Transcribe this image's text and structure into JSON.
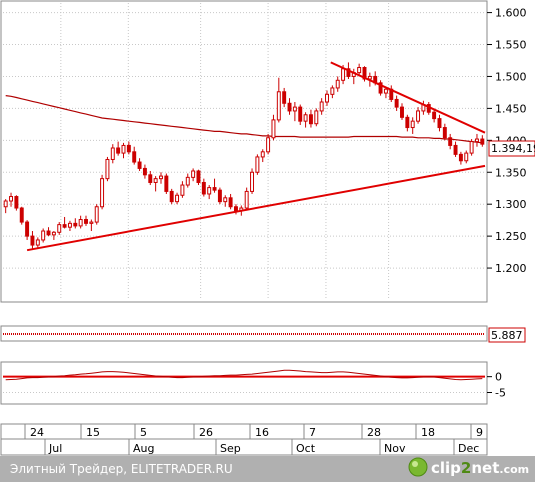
{
  "chart_data": {
    "type": "candlestick",
    "main_panel": {
      "y_ticks": [
        "1.600",
        "1.550",
        "1.500",
        "1.450",
        "1.400",
        "1.350",
        "1.300",
        "1.250",
        "1.200"
      ],
      "y_tick_values": [
        1600,
        1550,
        1500,
        1450,
        1400,
        1350,
        1300,
        1250,
        1200
      ],
      "ylim": [
        1150,
        1615
      ],
      "last_price_label": "1.394,19",
      "last_price": 1394.19,
      "candles": [
        [
          1296,
          1308,
          1286,
          1305
        ],
        [
          1305,
          1318,
          1296,
          1312
        ],
        [
          1312,
          1314,
          1290,
          1294
        ],
        [
          1294,
          1296,
          1268,
          1272
        ],
        [
          1272,
          1275,
          1244,
          1250
        ],
        [
          1250,
          1258,
          1230,
          1236
        ],
        [
          1236,
          1248,
          1230,
          1244
        ],
        [
          1244,
          1262,
          1240,
          1258
        ],
        [
          1258,
          1264,
          1250,
          1252
        ],
        [
          1252,
          1258,
          1244,
          1256
        ],
        [
          1256,
          1272,
          1252,
          1268
        ],
        [
          1268,
          1280,
          1262,
          1264
        ],
        [
          1264,
          1274,
          1258,
          1270
        ],
        [
          1270,
          1278,
          1262,
          1266
        ],
        [
          1266,
          1282,
          1262,
          1276
        ],
        [
          1276,
          1282,
          1266,
          1270
        ],
        [
          1270,
          1276,
          1258,
          1272
        ],
        [
          1272,
          1300,
          1268,
          1296
        ],
        [
          1296,
          1346,
          1292,
          1340
        ],
        [
          1340,
          1374,
          1336,
          1370
        ],
        [
          1370,
          1394,
          1364,
          1388
        ],
        [
          1388,
          1398,
          1376,
          1380
        ],
        [
          1380,
          1396,
          1372,
          1392
        ],
        [
          1392,
          1398,
          1378,
          1382
        ],
        [
          1382,
          1390,
          1362,
          1366
        ],
        [
          1366,
          1372,
          1352,
          1356
        ],
        [
          1356,
          1362,
          1340,
          1346
        ],
        [
          1346,
          1352,
          1330,
          1334
        ],
        [
          1334,
          1344,
          1320,
          1340
        ],
        [
          1340,
          1350,
          1332,
          1344
        ],
        [
          1344,
          1348,
          1316,
          1320
        ],
        [
          1320,
          1324,
          1300,
          1304
        ],
        [
          1304,
          1318,
          1300,
          1314
        ],
        [
          1314,
          1336,
          1310,
          1330
        ],
        [
          1330,
          1348,
          1326,
          1342
        ],
        [
          1342,
          1356,
          1336,
          1352
        ],
        [
          1352,
          1354,
          1330,
          1334
        ],
        [
          1334,
          1340,
          1312,
          1316
        ],
        [
          1316,
          1330,
          1308,
          1326
        ],
        [
          1326,
          1340,
          1318,
          1322
        ],
        [
          1322,
          1326,
          1300,
          1304
        ],
        [
          1304,
          1314,
          1296,
          1310
        ],
        [
          1310,
          1316,
          1292,
          1296
        ],
        [
          1296,
          1300,
          1284,
          1290
        ],
        [
          1290,
          1298,
          1282,
          1294
        ],
        [
          1294,
          1326,
          1290,
          1320
        ],
        [
          1320,
          1356,
          1316,
          1350
        ],
        [
          1350,
          1378,
          1346,
          1374
        ],
        [
          1374,
          1386,
          1366,
          1382
        ],
        [
          1382,
          1410,
          1378,
          1404
        ],
        [
          1404,
          1440,
          1400,
          1432
        ],
        [
          1432,
          1498,
          1428,
          1476
        ],
        [
          1476,
          1482,
          1452,
          1458
        ],
        [
          1458,
          1466,
          1440,
          1446
        ],
        [
          1446,
          1460,
          1430,
          1452
        ],
        [
          1452,
          1456,
          1424,
          1430
        ],
        [
          1430,
          1444,
          1420,
          1440
        ],
        [
          1440,
          1448,
          1420,
          1426
        ],
        [
          1426,
          1450,
          1422,
          1446
        ],
        [
          1446,
          1466,
          1440,
          1460
        ],
        [
          1460,
          1478,
          1454,
          1472
        ],
        [
          1472,
          1486,
          1466,
          1482
        ],
        [
          1482,
          1500,
          1476,
          1494
        ],
        [
          1494,
          1518,
          1488,
          1512
        ],
        [
          1512,
          1522,
          1496,
          1500
        ],
        [
          1500,
          1512,
          1488,
          1506
        ],
        [
          1506,
          1520,
          1500,
          1514
        ],
        [
          1514,
          1516,
          1492,
          1496
        ],
        [
          1496,
          1506,
          1484,
          1500
        ],
        [
          1500,
          1508,
          1486,
          1490
        ],
        [
          1490,
          1494,
          1470,
          1474
        ],
        [
          1474,
          1484,
          1466,
          1480
        ],
        [
          1480,
          1486,
          1460,
          1464
        ],
        [
          1464,
          1470,
          1446,
          1452
        ],
        [
          1452,
          1458,
          1432,
          1436
        ],
        [
          1436,
          1440,
          1414,
          1420
        ],
        [
          1420,
          1436,
          1410,
          1430
        ],
        [
          1430,
          1452,
          1426,
          1446
        ],
        [
          1446,
          1462,
          1440,
          1456
        ],
        [
          1456,
          1460,
          1440,
          1444
        ],
        [
          1444,
          1450,
          1428,
          1434
        ],
        [
          1434,
          1440,
          1414,
          1420
        ],
        [
          1420,
          1426,
          1400,
          1404
        ],
        [
          1404,
          1410,
          1386,
          1392
        ],
        [
          1392,
          1398,
          1374,
          1378
        ],
        [
          1378,
          1382,
          1362,
          1368
        ],
        [
          1368,
          1384,
          1364,
          1380
        ],
        [
          1380,
          1402,
          1376,
          1398
        ],
        [
          1398,
          1410,
          1390,
          1402
        ],
        [
          1402,
          1408,
          1390,
          1394
        ]
      ],
      "moving_average": [
        1470,
        1469,
        1467,
        1465,
        1463,
        1461,
        1459,
        1457,
        1455,
        1453,
        1451,
        1449,
        1447,
        1445,
        1443,
        1441,
        1439,
        1437,
        1435,
        1434,
        1433,
        1432,
        1431,
        1430,
        1429,
        1428,
        1427,
        1426,
        1425,
        1424,
        1423,
        1422,
        1421,
        1420,
        1419,
        1418,
        1417,
        1416,
        1415,
        1414,
        1414,
        1413,
        1412,
        1411,
        1410,
        1410,
        1409,
        1408,
        1407,
        1407,
        1406,
        1406,
        1406,
        1406,
        1406,
        1405,
        1405,
        1405,
        1405,
        1405,
        1405,
        1405,
        1405,
        1405,
        1405,
        1406,
        1406,
        1406,
        1406,
        1406,
        1406,
        1406,
        1406,
        1406,
        1405,
        1405,
        1405,
        1404,
        1404,
        1404,
        1403,
        1403,
        1402,
        1402,
        1401,
        1400,
        1399,
        1398,
        1397,
        1396
      ],
      "trendlines": [
        {
          "x1": 0.05,
          "y1": 1228,
          "x2": 1.0,
          "y2": 1360
        },
        {
          "x1": 0.68,
          "y1": 1522,
          "x2": 1.0,
          "y2": 1412
        }
      ]
    },
    "indicator_panel": {
      "value_label": "5.887",
      "value": 5.887
    },
    "oscillator_panel": {
      "y_ticks": [
        "0",
        "-5"
      ],
      "y_tick_values": [
        0,
        -5
      ],
      "ylim": [
        -8,
        4
      ],
      "zero_line": 0,
      "series": [
        -1.0,
        -0.9,
        -0.8,
        -0.6,
        -0.4,
        -0.3,
        -0.3,
        -0.2,
        -0.1,
        0.0,
        0.2,
        0.3,
        0.5,
        0.6,
        0.8,
        0.9,
        1.1,
        1.3,
        1.5,
        1.6,
        1.6,
        1.5,
        1.4,
        1.2,
        1.0,
        0.8,
        0.6,
        0.4,
        0.2,
        0.1,
        0.0,
        -0.2,
        -0.3,
        -0.3,
        -0.2,
        -0.1,
        0.0,
        0.1,
        0.2,
        0.3,
        0.3,
        0.4,
        0.5,
        0.5,
        0.6,
        0.7,
        0.8,
        1.0,
        1.2,
        1.4,
        1.6,
        1.8,
        2.0,
        2.0,
        1.9,
        1.8,
        1.6,
        1.5,
        1.4,
        1.3,
        1.3,
        1.4,
        1.5,
        1.5,
        1.4,
        1.2,
        1.0,
        0.8,
        0.6,
        0.4,
        0.2,
        0.0,
        -0.2,
        -0.3,
        -0.4,
        -0.4,
        -0.3,
        -0.2,
        -0.1,
        0.0,
        -0.1,
        -0.3,
        -0.5,
        -0.7,
        -0.9,
        -1.0,
        -0.9,
        -0.8,
        -0.7,
        -0.6
      ]
    },
    "x_axis": {
      "day_labels": [
        "24",
        "15",
        "5",
        "26",
        "16",
        "7",
        "28",
        "18",
        "9"
      ],
      "month_labels": [
        "Jul",
        "Aug",
        "Sep",
        "Oct",
        "Nov",
        "Dec"
      ]
    },
    "colors": {
      "candle": "#cc0000",
      "moving_average": "#b00000",
      "trendline": "#e00000",
      "grid": "#c8c8c8",
      "footer_bg": "#b0b0b0"
    }
  },
  "footer": {
    "source_text": "Элитный Трейдер, ELITETRADER.RU",
    "logo_part1": "clip",
    "logo_part2": "2",
    "logo_part3": "net",
    "logo_part4": ".com"
  }
}
